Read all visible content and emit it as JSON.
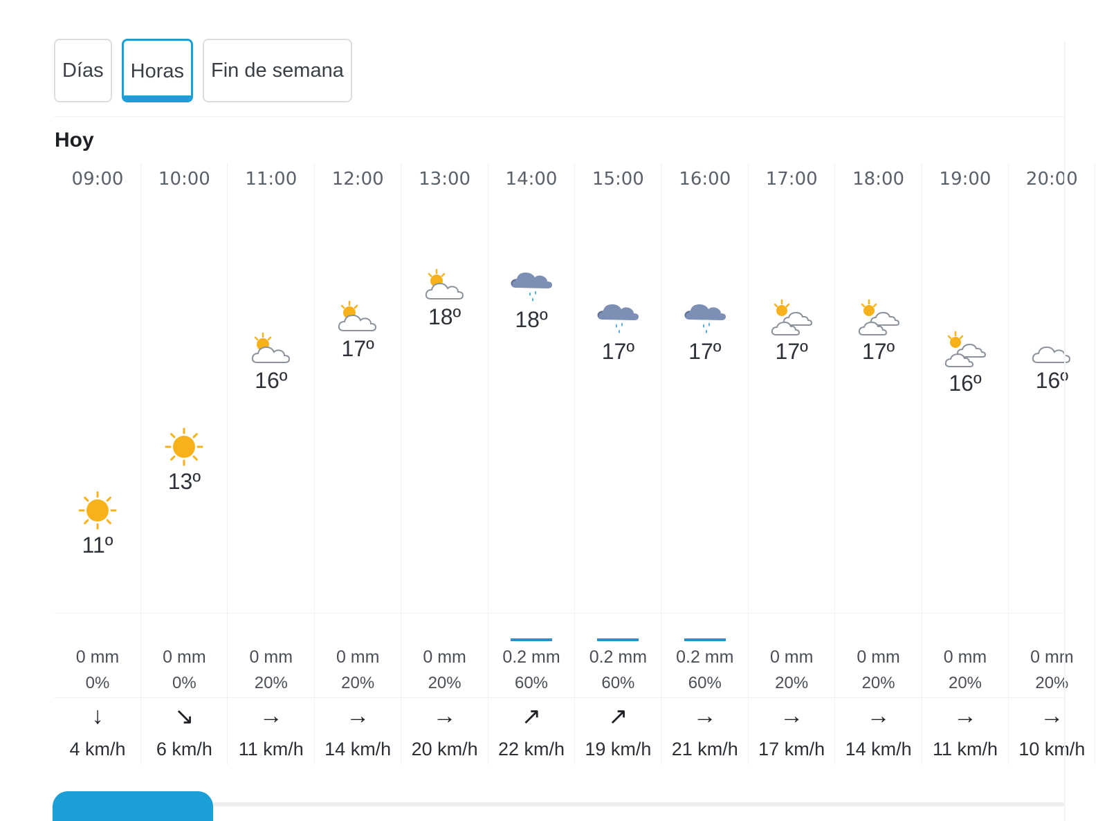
{
  "tabs": [
    {
      "label": "Días",
      "active": false
    },
    {
      "label": "Horas",
      "active": true
    },
    {
      "label": "Fin de semana",
      "active": false
    }
  ],
  "day_title": "Hoy",
  "hours": [
    {
      "time": "09:00",
      "icon": "sun-icon",
      "temp": "11º",
      "rain_mm": "0 mm",
      "rain_prob": "0%",
      "wind_dir": "↓",
      "wind": "4 km/h"
    },
    {
      "time": "10:00",
      "icon": "sun-icon",
      "temp": "13º",
      "rain_mm": "0 mm",
      "rain_prob": "0%",
      "wind_dir": "↘",
      "wind": "6 km/h"
    },
    {
      "time": "11:00",
      "icon": "partly-cloudy-icon",
      "temp": "16º",
      "rain_mm": "0 mm",
      "rain_prob": "20%",
      "wind_dir": "→",
      "wind": "11 km/h"
    },
    {
      "time": "12:00",
      "icon": "partly-cloudy-icon",
      "temp": "17º",
      "rain_mm": "0 mm",
      "rain_prob": "20%",
      "wind_dir": "→",
      "wind": "14 km/h"
    },
    {
      "time": "13:00",
      "icon": "partly-cloudy-icon",
      "temp": "18º",
      "rain_mm": "0 mm",
      "rain_prob": "20%",
      "wind_dir": "→",
      "wind": "20 km/h"
    },
    {
      "time": "14:00",
      "icon": "rain-cloud-icon",
      "temp": "18º",
      "rain_mm": "0.2 mm",
      "rain_prob": "60%",
      "wind_dir": "↗",
      "wind": "22 km/h"
    },
    {
      "time": "15:00",
      "icon": "rain-cloud-icon",
      "temp": "17º",
      "rain_mm": "0.2 mm",
      "rain_prob": "60%",
      "wind_dir": "↗",
      "wind": "19 km/h"
    },
    {
      "time": "16:00",
      "icon": "rain-cloud-icon",
      "temp": "17º",
      "rain_mm": "0.2 mm",
      "rain_prob": "60%",
      "wind_dir": "→",
      "wind": "21 km/h"
    },
    {
      "time": "17:00",
      "icon": "sun-clouds-icon",
      "temp": "17º",
      "rain_mm": "0 mm",
      "rain_prob": "20%",
      "wind_dir": "→",
      "wind": "17 km/h"
    },
    {
      "time": "18:00",
      "icon": "sun-clouds-icon",
      "temp": "17º",
      "rain_mm": "0 mm",
      "rain_prob": "20%",
      "wind_dir": "→",
      "wind": "14 km/h"
    },
    {
      "time": "19:00",
      "icon": "sun-clouds-icon",
      "temp": "16º",
      "rain_mm": "0 mm",
      "rain_prob": "20%",
      "wind_dir": "→",
      "wind": "11 km/h"
    },
    {
      "time": "20:00",
      "icon": "cloud-icon",
      "temp": "16º",
      "rain_mm": "0 mm",
      "rain_prob": "20%",
      "wind_dir": "→",
      "wind": "10 km/h"
    }
  ],
  "colors": {
    "accent": "#1aa0d6",
    "sun": "#f7b21b",
    "rain_cloud": "#7d8fb5",
    "rain_bar": "#2d8fc5"
  }
}
